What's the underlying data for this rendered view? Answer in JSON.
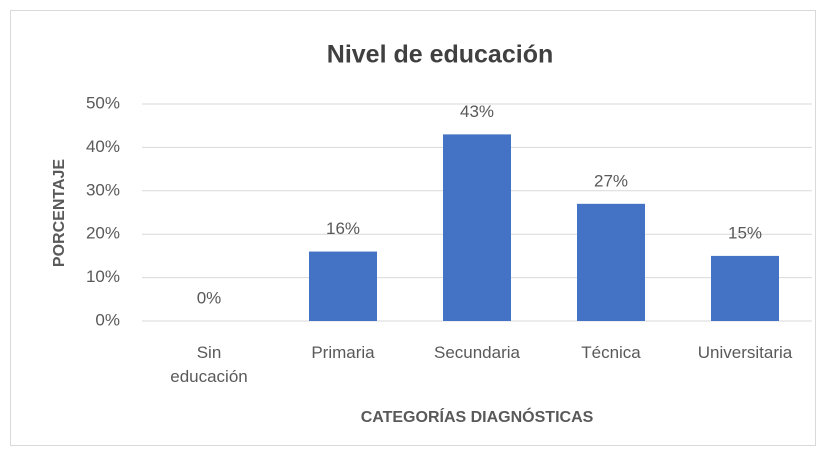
{
  "chart_data": {
    "type": "bar",
    "title": "Nivel de educación",
    "x_label": "CATEGORÍAS DIAGNÓSTICAS",
    "y_label": "PORCENTAJE",
    "categories": [
      "Sin educación",
      "Primaria",
      "Secundaria",
      "Técnica",
      "Universitaria"
    ],
    "values": [
      0,
      16,
      43,
      27,
      15
    ],
    "value_labels": [
      "0%",
      "16%",
      "43%",
      "27%",
      "15%"
    ],
    "color": "#4472c4",
    "ylim": [
      0,
      50
    ],
    "yticks": [
      {
        "value": 0,
        "label": "0%"
      },
      {
        "value": 10,
        "label": "10%"
      },
      {
        "value": 20,
        "label": "20%"
      },
      {
        "value": 30,
        "label": "30%"
      },
      {
        "value": 40,
        "label": "40%"
      },
      {
        "value": 50,
        "label": "50%"
      }
    ],
    "grid": true
  }
}
